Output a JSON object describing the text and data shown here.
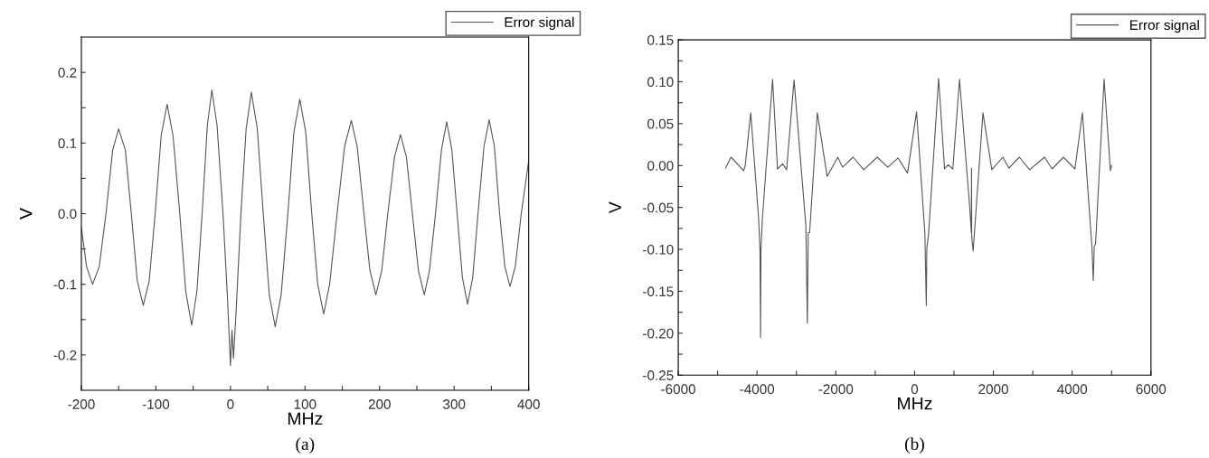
{
  "chart_data": [
    {
      "type": "line",
      "xlabel": "MHz",
      "ylabel": "V",
      "annotations": [
        "(a)"
      ],
      "legend": "top right",
      "xlim": [
        -200,
        400
      ],
      "ylim": [
        -0.25,
        0.25
      ],
      "xticks": [
        -200,
        {
          "value": -150,
          "label": null
        },
        -100,
        {
          "value": -50,
          "label": null
        },
        0,
        {
          "value": 50,
          "label": null
        },
        100,
        {
          "value": 150,
          "label": null
        },
        200,
        {
          "value": 250,
          "label": null
        },
        300,
        {
          "value": 350,
          "label": null
        },
        400
      ],
      "yticks": [
        {
          "value": -0.2,
          "label": "-0.2"
        },
        {
          "value": -0.15,
          "label": null
        },
        {
          "value": -0.1,
          "label": "-0.1"
        },
        {
          "value": -0.05,
          "label": null
        },
        {
          "value": 0,
          "label": "0.0"
        },
        {
          "value": 0.05,
          "label": null
        },
        {
          "value": 0.1,
          "label": "0.1"
        },
        {
          "value": 0.15,
          "label": null
        },
        {
          "value": 0.2,
          "label": "0.2"
        }
      ],
      "series": [
        {
          "name": "Error signal",
          "color": "#555555",
          "x": [
            -200,
            -193,
            -185,
            -176,
            -167,
            -158,
            -150,
            -141,
            -133,
            -125,
            -117,
            -109,
            -101,
            -93,
            -85,
            -77,
            -68,
            -60,
            -52,
            -45,
            -38,
            -31,
            -25,
            -18,
            -10,
            -4,
            0,
            2,
            4,
            8,
            14,
            21,
            28,
            36,
            44,
            52,
            60,
            68,
            77,
            85,
            93,
            101,
            109,
            117,
            125,
            133,
            143,
            153,
            162,
            170,
            179,
            187,
            195,
            203,
            211,
            220,
            228,
            236,
            244,
            252,
            260,
            267,
            275,
            283,
            290,
            297,
            304,
            311,
            318,
            325,
            332,
            340,
            347,
            354,
            361,
            368,
            375,
            382,
            390,
            400
          ],
          "values": [
            -0.02,
            -0.075,
            -0.1,
            -0.075,
            0.0,
            0.09,
            0.12,
            0.09,
            0.0,
            -0.095,
            -0.13,
            -0.095,
            0.0,
            0.11,
            0.155,
            0.11,
            0.0,
            -0.11,
            -0.158,
            -0.11,
            0.0,
            0.125,
            0.175,
            0.125,
            0.0,
            -0.12,
            -0.215,
            -0.165,
            -0.205,
            -0.13,
            0.0,
            0.12,
            0.172,
            0.12,
            0.0,
            -0.115,
            -0.16,
            -0.115,
            0.0,
            0.115,
            0.162,
            0.115,
            0.0,
            -0.1,
            -0.142,
            -0.1,
            0.0,
            0.095,
            0.132,
            0.095,
            0.0,
            -0.08,
            -0.115,
            -0.08,
            0.0,
            0.08,
            0.112,
            0.08,
            0.0,
            -0.08,
            -0.115,
            -0.08,
            0.0,
            0.09,
            0.13,
            0.09,
            0.0,
            -0.09,
            -0.128,
            -0.09,
            0.0,
            0.095,
            0.133,
            0.095,
            0.0,
            -0.075,
            -0.103,
            -0.075,
            0.0,
            0.075
          ]
        }
      ]
    },
    {
      "type": "line",
      "xlabel": "MHz",
      "ylabel": "V",
      "annotations": [
        "(b)"
      ],
      "legend": "top right",
      "xlim": [
        -6000,
        6000
      ],
      "ylim": [
        -0.25,
        0.15
      ],
      "xticks": [
        -6000,
        {
          "value": -5000,
          "label": null
        },
        -4000,
        {
          "value": -3000,
          "label": null
        },
        -2000,
        {
          "value": -1000,
          "label": null
        },
        0,
        {
          "value": 1000,
          "label": null
        },
        2000,
        {
          "value": 3000,
          "label": null
        },
        4000,
        {
          "value": 5000,
          "label": null
        },
        6000
      ],
      "yticks": [
        {
          "value": -0.25,
          "label": "-0.25"
        },
        {
          "value": -0.225,
          "label": null
        },
        {
          "value": -0.2,
          "label": "-0.20"
        },
        {
          "value": -0.175,
          "label": null
        },
        {
          "value": -0.15,
          "label": "-0.15"
        },
        {
          "value": -0.125,
          "label": null
        },
        {
          "value": -0.1,
          "label": "-0.10"
        },
        {
          "value": -0.075,
          "label": null
        },
        {
          "value": -0.05,
          "label": "-0.05"
        },
        {
          "value": -0.025,
          "label": null
        },
        {
          "value": 0,
          "label": "0.00"
        },
        {
          "value": 0.025,
          "label": null
        },
        {
          "value": 0.05,
          "label": "0.05"
        },
        {
          "value": 0.075,
          "label": null
        },
        {
          "value": 0.1,
          "label": "0.10"
        },
        {
          "value": 0.125,
          "label": null
        },
        {
          "value": 0.15,
          "label": "0.15"
        }
      ],
      "series": [
        {
          "name": "Error signal",
          "color": "#555555",
          "x": [
            -4800,
            -4660,
            -4340,
            -4300,
            -4160,
            -3960,
            -3925,
            -3911,
            -3900,
            -3864,
            -3605,
            -3480,
            -3350,
            -3250,
            -3060,
            -2760,
            -2723,
            -2700,
            -2665,
            -2470,
            -2220,
            -1950,
            -1830,
            -1560,
            -1290,
            -950,
            -680,
            -420,
            -180,
            50,
            260,
            297,
            310,
            355,
            610,
            760,
            850,
            970,
            1140,
            1400,
            1440,
            1445,
            1450,
            1486,
            1735,
            1960,
            2240,
            2390,
            2660,
            2920,
            3300,
            3490,
            3780,
            4070,
            4260,
            4500,
            4535,
            4560,
            4593,
            4810,
            4970,
            5000
          ],
          "values": [
            -0.003,
            0.01,
            -0.006,
            0.0,
            0.063,
            -0.063,
            -0.1,
            -0.205,
            -0.1,
            -0.063,
            0.103,
            -0.004,
            0.002,
            -0.005,
            0.102,
            -0.072,
            -0.188,
            -0.08,
            -0.08,
            0.063,
            -0.013,
            0.01,
            -0.002,
            0.01,
            -0.005,
            0.01,
            -0.002,
            0.009,
            -0.009,
            0.064,
            -0.08,
            -0.167,
            -0.099,
            -0.081,
            0.104,
            -0.004,
            0.001,
            -0.004,
            0.103,
            -0.05,
            -0.08,
            -0.003,
            -0.085,
            -0.102,
            0.063,
            -0.005,
            0.01,
            -0.003,
            0.01,
            -0.005,
            0.01,
            -0.004,
            0.01,
            -0.004,
            0.063,
            -0.096,
            -0.137,
            -0.096,
            -0.094,
            0.103,
            -0.006,
            0.0
          ]
        }
      ]
    }
  ]
}
